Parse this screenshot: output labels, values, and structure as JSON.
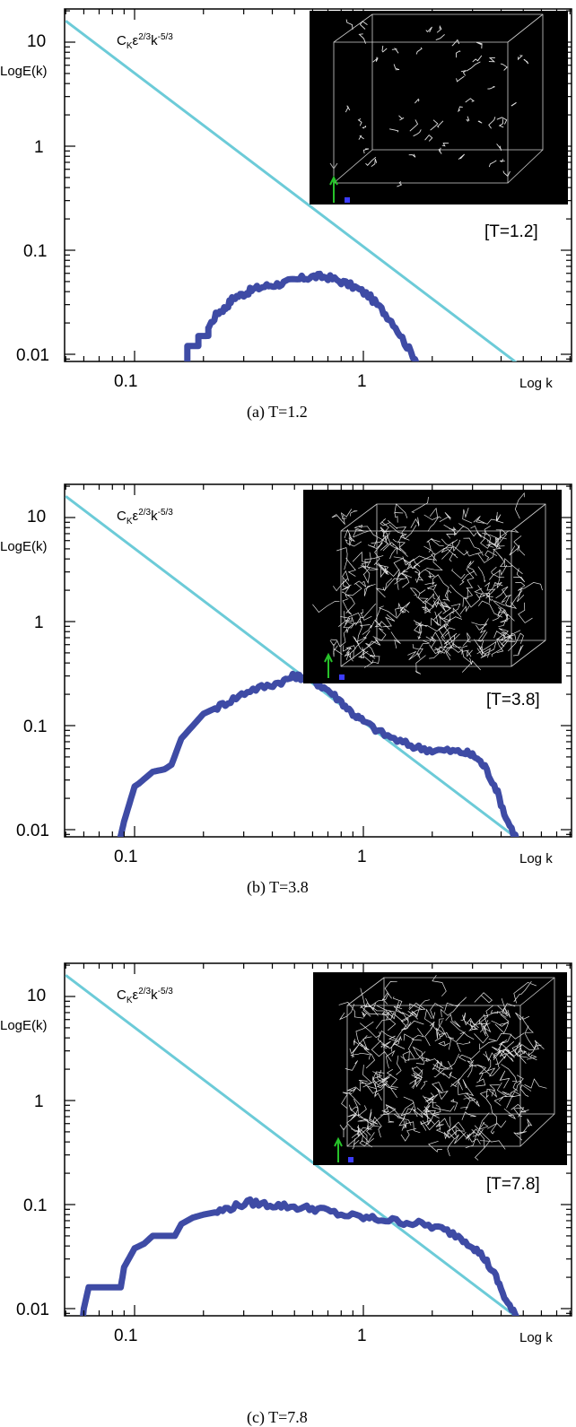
{
  "chart_data": [
    {
      "type": "line",
      "panel_caption": "(a) T=1.2",
      "xlabel": "Log k",
      "ylabel": "LogE(k)",
      "x_scale": "log",
      "y_scale": "log",
      "xlim": [
        0.05,
        6.3
      ],
      "ylim": [
        0.005,
        20
      ],
      "x_ticks": [
        "0.1",
        "1"
      ],
      "y_ticks": [
        "10",
        "1",
        "0.1",
        "0.01"
      ],
      "inset_label": "[T=1.2]",
      "reference_line": {
        "formula": {
          "C": "C",
          "K": "K",
          "eps": "ε",
          "eps_pow": "2/3",
          "k": "k",
          "k_pow": "-5/3"
        },
        "color": "#6ccbd8",
        "y_at_0_05": 16,
        "slope": -1.667
      },
      "spectrum_color": "#3e4ba5",
      "series": [
        {
          "x": [
            0.16,
            0.17,
            0.17,
            0.19,
            0.19,
            0.21,
            0.21,
            0.23,
            0.25,
            0.27,
            0.3,
            0.33,
            0.37,
            0.42,
            0.48,
            0.55,
            0.62,
            0.7,
            0.8,
            0.92,
            1.05,
            1.2,
            1.35,
            1.55,
            1.75,
            2.0
          ],
          "y": [
            0.005,
            0.007,
            0.012,
            0.012,
            0.015,
            0.015,
            0.018,
            0.025,
            0.028,
            0.035,
            0.038,
            0.042,
            0.045,
            0.047,
            0.05,
            0.054,
            0.056,
            0.055,
            0.05,
            0.044,
            0.037,
            0.027,
            0.02,
            0.012,
            0.008,
            0.005
          ]
        }
      ]
    },
    {
      "type": "line",
      "panel_caption": "(b) T=3.8",
      "xlabel": "Log k",
      "ylabel": "LogE(k)",
      "x_scale": "log",
      "y_scale": "log",
      "xlim": [
        0.05,
        6.3
      ],
      "ylim": [
        0.005,
        20
      ],
      "x_ticks": [
        "0.1",
        "1"
      ],
      "y_ticks": [
        "10",
        "1",
        "0.1",
        "0.01"
      ],
      "inset_label": "[T=3.8]",
      "reference_line": {
        "formula": {
          "C": "C",
          "K": "K",
          "eps": "ε",
          "eps_pow": "2/3",
          "k": "k",
          "k_pow": "-5/3"
        },
        "color": "#6ccbd8",
        "y_at_0_05": 16,
        "slope": -1.667
      },
      "spectrum_color": "#3e4ba5",
      "series": [
        {
          "x": [
            0.055,
            0.058,
            0.06,
            0.068,
            0.075,
            0.085,
            0.09,
            0.1,
            0.105,
            0.12,
            0.135,
            0.145,
            0.16,
            0.18,
            0.2,
            0.23,
            0.27,
            0.32,
            0.38,
            0.45,
            0.5,
            0.55,
            0.62,
            0.7,
            0.8,
            0.9,
            1.0,
            1.2,
            1.45,
            1.7,
            2.0,
            2.4,
            2.8,
            3.1,
            3.4,
            3.8,
            4.2,
            4.7,
            5.2
          ],
          "y": [
            0.005,
            0.006,
            0.007,
            0.007,
            0.007,
            0.007,
            0.012,
            0.026,
            0.028,
            0.036,
            0.038,
            0.042,
            0.075,
            0.1,
            0.13,
            0.15,
            0.18,
            0.22,
            0.24,
            0.27,
            0.3,
            0.29,
            0.26,
            0.22,
            0.17,
            0.13,
            0.11,
            0.085,
            0.07,
            0.062,
            0.058,
            0.057,
            0.055,
            0.05,
            0.04,
            0.025,
            0.013,
            0.008,
            0.006
          ]
        }
      ]
    },
    {
      "type": "line",
      "panel_caption": "(c) T=7.8",
      "xlabel": "Log k",
      "ylabel": "LogE(k)",
      "x_scale": "log",
      "y_scale": "log",
      "xlim": [
        0.05,
        6.3
      ],
      "ylim": [
        0.005,
        20
      ],
      "x_ticks": [
        "0.1",
        "1"
      ],
      "y_ticks": [
        "10",
        "1",
        "0.1",
        "0.01"
      ],
      "inset_label": "[T=7.8]",
      "reference_line": {
        "formula": {
          "C": "C",
          "K": "K",
          "eps": "ε",
          "eps_pow": "2/3",
          "k": "k",
          "k_pow": "-5/3"
        },
        "color": "#6ccbd8",
        "y_at_0_05": 16,
        "slope": -1.667
      },
      "spectrum_color": "#3e4ba5",
      "series": [
        {
          "x": [
            0.058,
            0.06,
            0.063,
            0.07,
            0.08,
            0.087,
            0.09,
            0.1,
            0.11,
            0.12,
            0.135,
            0.15,
            0.16,
            0.18,
            0.2,
            0.23,
            0.27,
            0.32,
            0.38,
            0.45,
            0.55,
            0.65,
            0.8,
            1.0,
            1.2,
            1.5,
            1.8,
            2.2,
            2.6,
            3.0,
            3.4,
            3.8,
            4.2,
            4.7,
            5.1
          ],
          "y": [
            0.005,
            0.01,
            0.016,
            0.016,
            0.016,
            0.016,
            0.025,
            0.038,
            0.042,
            0.05,
            0.05,
            0.05,
            0.065,
            0.075,
            0.08,
            0.085,
            0.095,
            0.105,
            0.1,
            0.097,
            0.093,
            0.09,
            0.08,
            0.075,
            0.072,
            0.068,
            0.065,
            0.058,
            0.05,
            0.04,
            0.03,
            0.02,
            0.012,
            0.008,
            0.005
          ]
        }
      ]
    }
  ]
}
